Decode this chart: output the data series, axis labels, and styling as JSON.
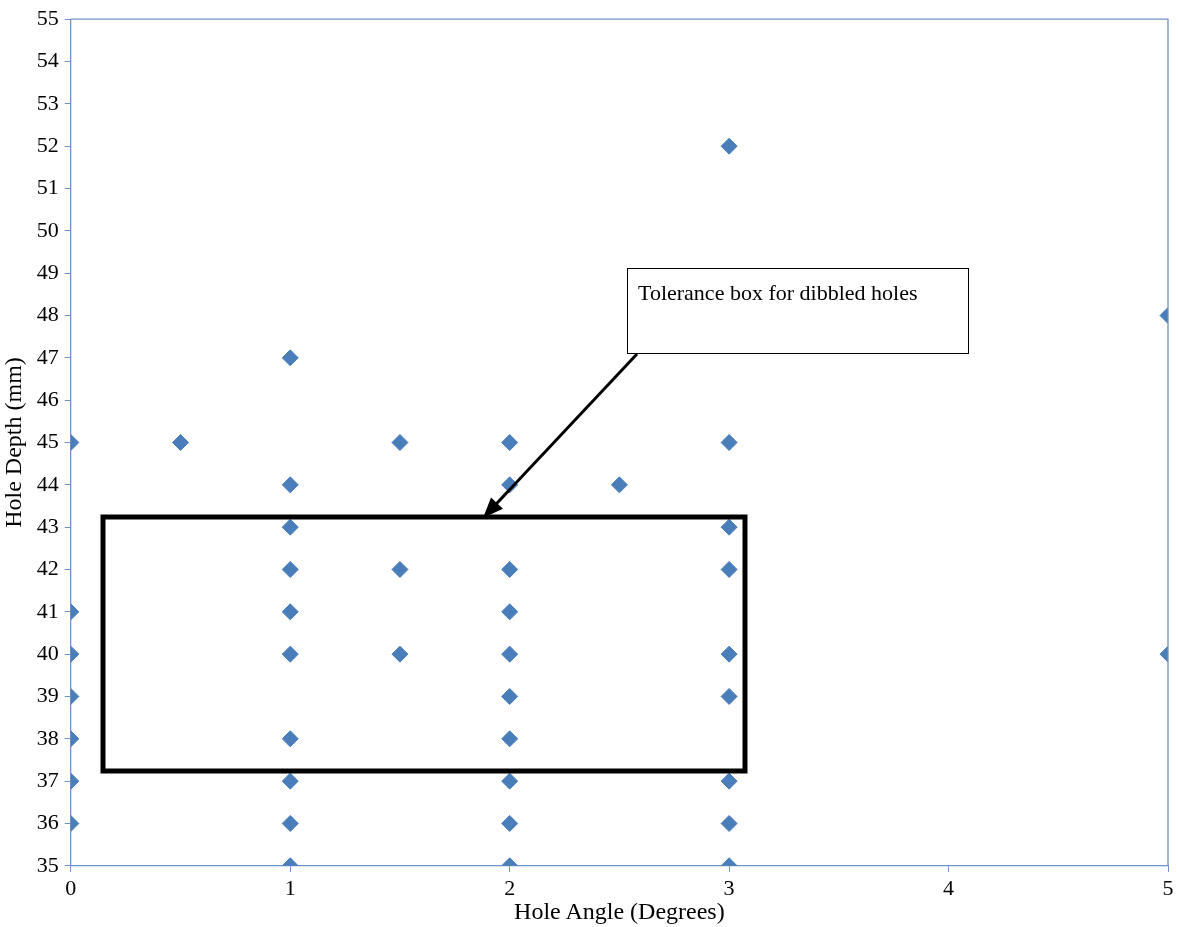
{
  "chart_data": {
    "type": "scatter",
    "xlabel": "Hole Angle (Degrees)",
    "ylabel": "Hole Depth (mm)",
    "annotations": [
      "Tolerance box for dibbled holes"
    ],
    "series": [
      {
        "color": "#4a7ebb",
        "x": [
          0,
          0,
          0,
          0,
          0,
          0,
          0,
          0.5,
          1,
          1,
          1,
          1,
          1,
          1,
          1,
          1,
          1,
          1,
          1.5,
          1.5,
          1.5,
          2,
          2,
          2,
          2,
          2,
          2,
          2,
          2,
          2,
          2,
          2.5,
          3,
          3,
          3,
          3,
          3,
          3,
          3,
          3,
          3,
          5,
          5
        ],
        "values": [
          45,
          41,
          40,
          39,
          38,
          37,
          36,
          45,
          47,
          44,
          43,
          42,
          41,
          40,
          38,
          37,
          36,
          35,
          45,
          42,
          40,
          45,
          44,
          42,
          41,
          40,
          39,
          38,
          37,
          36,
          35,
          44,
          52,
          45,
          43,
          42,
          40,
          39,
          37,
          36,
          35,
          48,
          40
        ]
      }
    ],
    "xlim": [
      0,
      5
    ],
    "xticks": [
      0,
      1,
      2,
      3,
      4,
      5
    ],
    "ylim": [
      35,
      55
    ],
    "yticks": [
      35,
      36,
      37,
      38,
      39,
      40,
      41,
      42,
      43,
      44,
      45,
      46,
      47,
      48,
      49,
      50,
      51,
      52,
      53,
      54,
      55
    ],
    "grid": false,
    "legend": false,
    "marker": "diamond"
  }
}
